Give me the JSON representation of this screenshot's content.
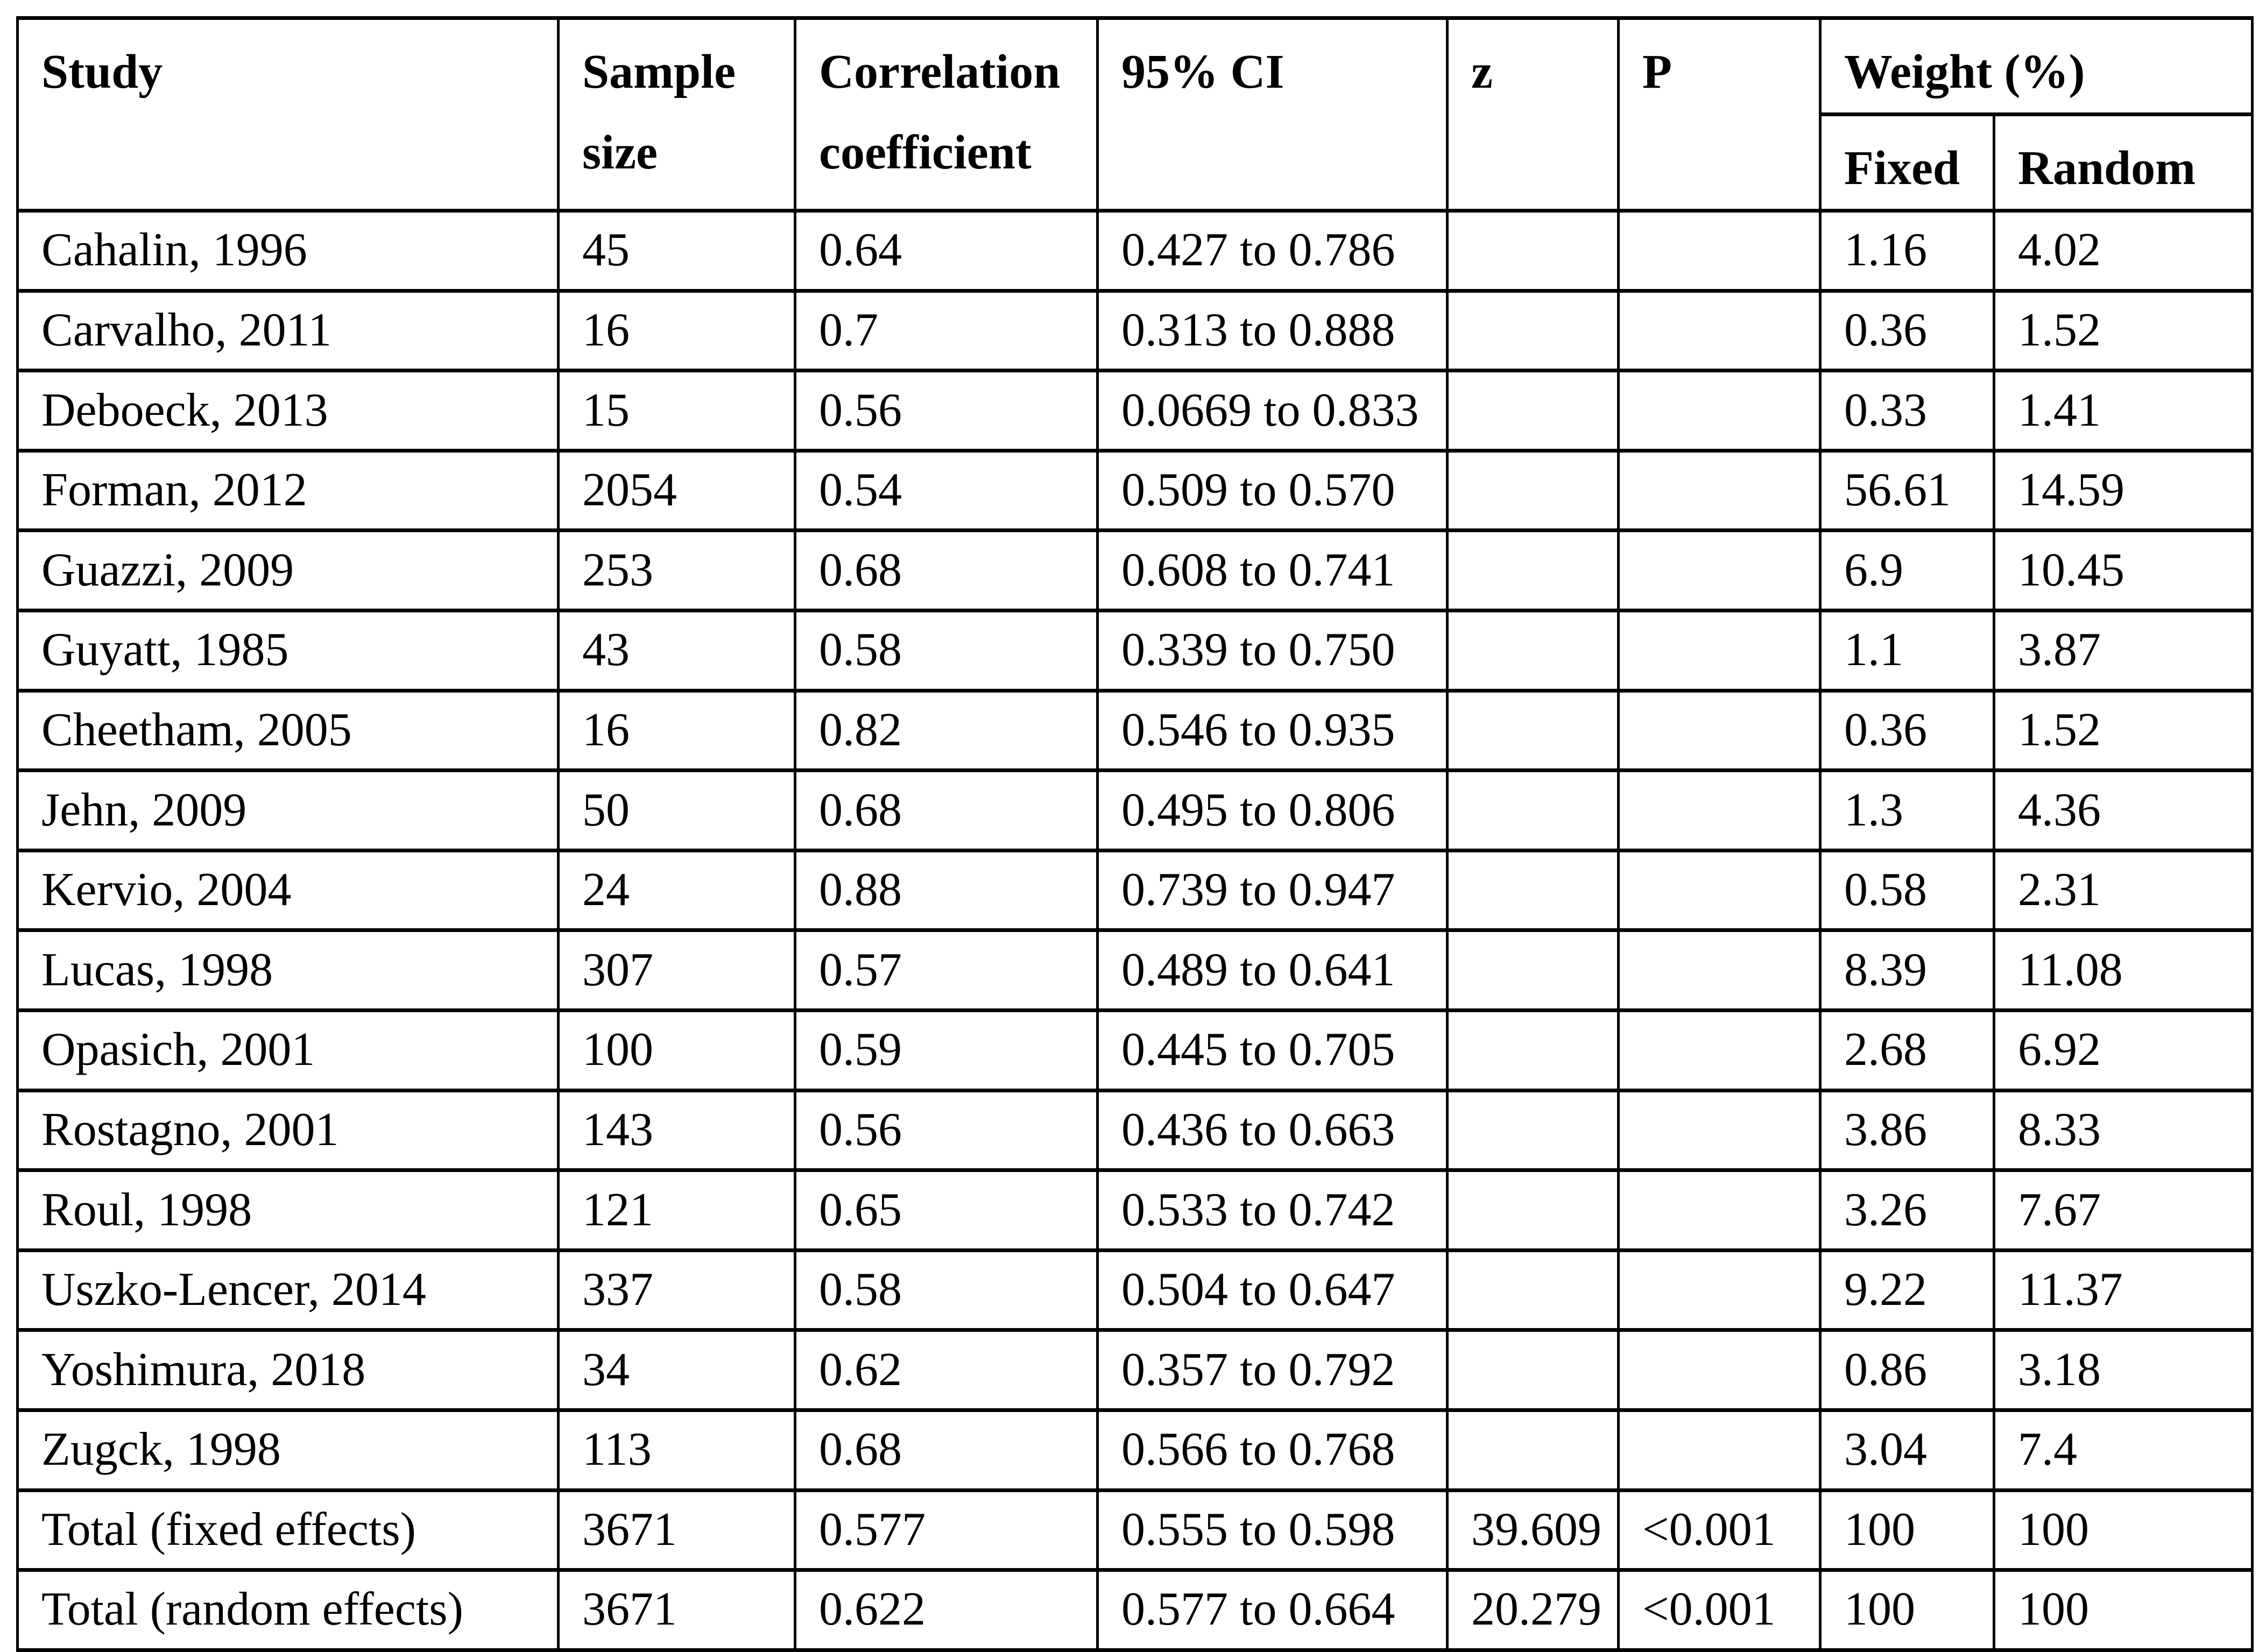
{
  "table": {
    "headers": {
      "study": "Study",
      "sample_line1": "Sample",
      "sample_line2": "size",
      "correlation_line1": "Correlation",
      "correlation_line2": "coefficient",
      "ci": "95% CI",
      "z": "z",
      "p": "P",
      "weight_group": "Weight (%)",
      "fixed": "Fixed",
      "random": "Random"
    },
    "column_keys": [
      "study",
      "sample-size",
      "correlation-coefficient",
      "ci",
      "z",
      "p",
      "weight-fixed",
      "weight-random"
    ],
    "rows": [
      [
        "Cahalin, 1996",
        "45",
        "0.64",
        "0.427 to 0.786",
        "",
        "",
        "1.16",
        "4.02"
      ],
      [
        "Carvalho, 2011",
        "16",
        "0.7",
        "0.313 to 0.888",
        "",
        "",
        "0.36",
        "1.52"
      ],
      [
        "Deboeck, 2013",
        "15",
        "0.56",
        "0.0669 to 0.833",
        "",
        "",
        "0.33",
        "1.41"
      ],
      [
        "Forman, 2012",
        "2054",
        "0.54",
        "0.509 to 0.570",
        "",
        "",
        "56.61",
        "14.59"
      ],
      [
        "Guazzi, 2009",
        "253",
        "0.68",
        "0.608 to 0.741",
        "",
        "",
        "6.9",
        "10.45"
      ],
      [
        "Guyatt, 1985",
        "43",
        "0.58",
        "0.339 to 0.750",
        "",
        "",
        "1.1",
        "3.87"
      ],
      [
        "Cheetham, 2005",
        "16",
        "0.82",
        "0.546 to 0.935",
        "",
        "",
        "0.36",
        "1.52"
      ],
      [
        "Jehn, 2009",
        "50",
        "0.68",
        "0.495 to 0.806",
        "",
        "",
        "1.3",
        "4.36"
      ],
      [
        "Kervio, 2004",
        "24",
        "0.88",
        "0.739 to 0.947",
        "",
        "",
        "0.58",
        "2.31"
      ],
      [
        "Lucas, 1998",
        "307",
        "0.57",
        "0.489 to 0.641",
        "",
        "",
        "8.39",
        "11.08"
      ],
      [
        "Opasich, 2001",
        "100",
        "0.59",
        "0.445 to 0.705",
        "",
        "",
        "2.68",
        "6.92"
      ],
      [
        "Rostagno, 2001",
        "143",
        "0.56",
        "0.436 to 0.663",
        "",
        "",
        "3.86",
        "8.33"
      ],
      [
        "Roul, 1998",
        "121",
        "0.65",
        "0.533 to 0.742",
        "",
        "",
        "3.26",
        "7.67"
      ],
      [
        "Uszko-Lencer, 2014",
        "337",
        "0.58",
        "0.504 to 0.647",
        "",
        "",
        "9.22",
        "11.37"
      ],
      [
        "Yoshimura, 2018",
        "34",
        "0.62",
        "0.357 to 0.792",
        "",
        "",
        "0.86",
        "3.18"
      ],
      [
        "Zugck, 1998",
        "113",
        "0.68",
        "0.566 to 0.768",
        "",
        "",
        "3.04",
        "7.4"
      ],
      [
        "Total (fixed effects)",
        "3671",
        "0.577",
        "0.555 to 0.598",
        "39.609",
        "<0.001",
        "100",
        "100"
      ],
      [
        "Total (random effects)",
        "3671",
        "0.622",
        "0.577 to 0.664",
        "20.279",
        "<0.001",
        "100",
        "100"
      ]
    ]
  }
}
